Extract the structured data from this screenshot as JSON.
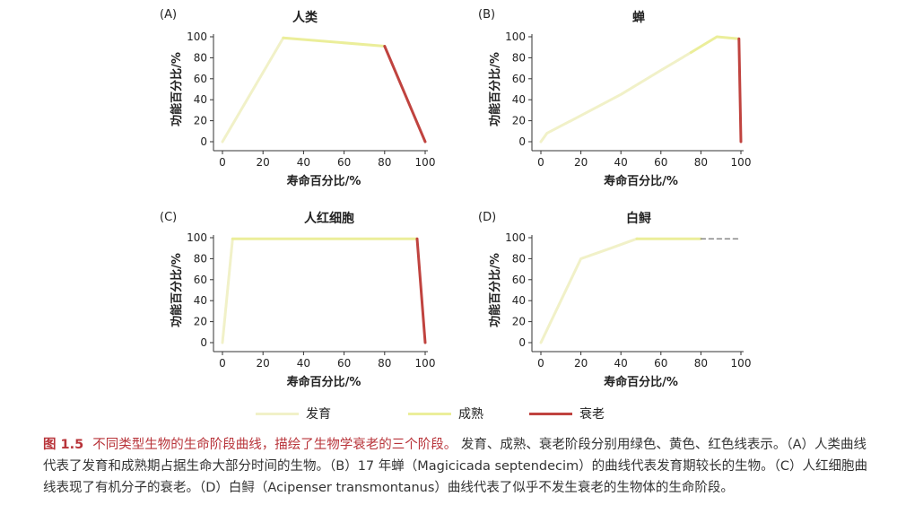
{
  "colors": {
    "development": "#f1f1c8",
    "maturity": "#ebee9a",
    "senescence": "#c0433f",
    "axis": "#333333",
    "dashed": "#888888"
  },
  "legend": [
    {
      "label": "发育",
      "stage": "development"
    },
    {
      "label": "成熟",
      "stage": "maturity"
    },
    {
      "label": "衰老",
      "stage": "senescence"
    }
  ],
  "caption": {
    "fig_number": "图 1.5",
    "highlight": "不同类型生物的生命阶段曲线，描绘了生物学衰老的三个阶段。",
    "body": "发育、成熟、衰老阶段分别用绿色、黄色、红色线表示。（A）人类曲线代表了发育和成熟期占据生命大部分时间的生物。（B）17 年蝉（Magicicada septendecim）的曲线代表发育期较长的生物。（C）人红细胞曲线表现了有机分子的衰老。（D）白鲟（Acipenser transmontanus）曲线代表了似乎不发生衰老的生物体的生命阶段。"
  },
  "chart_data": [
    {
      "panel": "(A)",
      "type": "line",
      "title": "人类",
      "xlabel": "寿命百分比/%",
      "ylabel": "功能百分比/%",
      "xlim": [
        0,
        100
      ],
      "ylim": [
        0,
        100
      ],
      "xticks": [
        0,
        20,
        40,
        60,
        80,
        100
      ],
      "yticks": [
        0,
        20,
        40,
        60,
        80,
        100
      ],
      "grid": false,
      "series": [
        {
          "stage": "development",
          "points": [
            [
              0,
              0
            ],
            [
              30,
              99
            ]
          ]
        },
        {
          "stage": "maturity",
          "points": [
            [
              30,
              99
            ],
            [
              80,
              91
            ]
          ]
        },
        {
          "stage": "senescence",
          "points": [
            [
              80,
              91
            ],
            [
              100,
              0
            ]
          ]
        }
      ]
    },
    {
      "panel": "(B)",
      "type": "line",
      "title": "蝉",
      "xlabel": "寿命百分比/%",
      "ylabel": "功能百分比/%",
      "xlim": [
        0,
        100
      ],
      "ylim": [
        0,
        100
      ],
      "xticks": [
        0,
        20,
        40,
        60,
        80,
        100
      ],
      "yticks": [
        0,
        20,
        40,
        60,
        80,
        100
      ],
      "grid": false,
      "series": [
        {
          "stage": "development",
          "points": [
            [
              0,
              0
            ],
            [
              3,
              8
            ],
            [
              20,
              25
            ],
            [
              40,
              45
            ],
            [
              60,
              68
            ],
            [
              75,
              85
            ]
          ]
        },
        {
          "stage": "maturity",
          "points": [
            [
              75,
              85
            ],
            [
              88,
              100
            ],
            [
              99,
              98
            ]
          ]
        },
        {
          "stage": "senescence",
          "points": [
            [
              99,
              98
            ],
            [
              100,
              0
            ]
          ]
        }
      ]
    },
    {
      "panel": "(C)",
      "type": "line",
      "title": "人红细胞",
      "xlabel": "寿命百分比/%",
      "ylabel": "功能百分比/%",
      "xlim": [
        0,
        100
      ],
      "ylim": [
        0,
        100
      ],
      "xticks": [
        0,
        20,
        40,
        60,
        80,
        100
      ],
      "yticks": [
        0,
        20,
        40,
        60,
        80,
        100
      ],
      "grid": false,
      "series": [
        {
          "stage": "development",
          "points": [
            [
              0,
              0
            ],
            [
              5,
              99
            ]
          ]
        },
        {
          "stage": "maturity",
          "points": [
            [
              5,
              99
            ],
            [
              96,
              99
            ]
          ]
        },
        {
          "stage": "senescence",
          "points": [
            [
              96,
              99
            ],
            [
              100,
              0
            ]
          ]
        }
      ]
    },
    {
      "panel": "(D)",
      "type": "line",
      "title": "白鲟",
      "xlabel": "寿命百分比/%",
      "ylabel": "功能百分比/%",
      "xlim": [
        0,
        100
      ],
      "ylim": [
        0,
        100
      ],
      "xticks": [
        0,
        20,
        40,
        60,
        80,
        100
      ],
      "yticks": [
        0,
        20,
        40,
        60,
        80,
        100
      ],
      "grid": false,
      "series": [
        {
          "stage": "development",
          "points": [
            [
              0,
              0
            ],
            [
              10,
              40
            ],
            [
              20,
              80
            ],
            [
              35,
              90
            ],
            [
              48,
              99
            ]
          ]
        },
        {
          "stage": "maturity",
          "points": [
            [
              48,
              99
            ],
            [
              80,
              99
            ]
          ]
        },
        {
          "stage": "extension",
          "dashed": true,
          "points": [
            [
              80,
              99
            ],
            [
              100,
              99
            ]
          ]
        }
      ]
    }
  ]
}
